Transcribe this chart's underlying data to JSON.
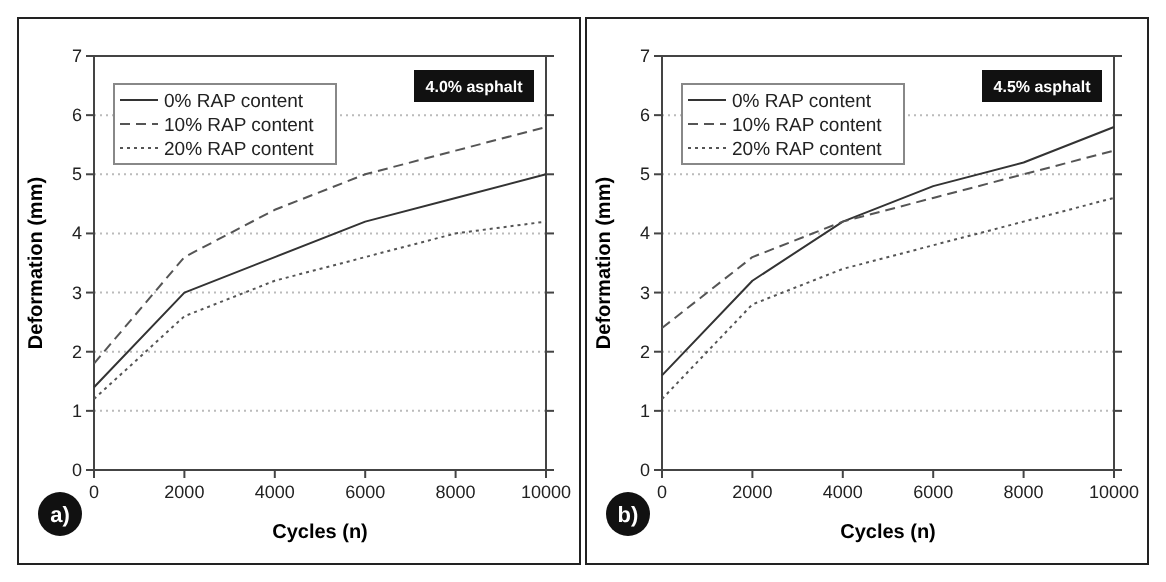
{
  "chart_data": [
    {
      "type": "line",
      "x": [
        0,
        2000,
        4000,
        6000,
        8000,
        10000
      ],
      "xlabel": "Cycles (n)",
      "ylabel": "Deformation (mm)",
      "xlim": [
        0,
        10000
      ],
      "xticks": [
        0,
        2000,
        4000,
        6000,
        8000,
        10000
      ],
      "ylim": [
        0,
        7
      ],
      "yticks": [
        0,
        1,
        2,
        3,
        4,
        5,
        6,
        7
      ],
      "grid": "y",
      "legend": "top left",
      "marker": "none",
      "annotations": [
        "4.0% asphalt",
        "a)"
      ],
      "series": [
        {
          "name": "0% RAP content",
          "color": "#333333",
          "line_style": "solid",
          "values": [
            1.4,
            3.0,
            3.6,
            4.2,
            4.6,
            5.0
          ]
        },
        {
          "name": "10% RAP content",
          "color": "#555555",
          "line_style": "dashed",
          "values": [
            1.8,
            3.6,
            4.4,
            5.0,
            5.4,
            5.8
          ]
        },
        {
          "name": "20% RAP content",
          "color": "#555555",
          "line_style": "dotted",
          "values": [
            1.2,
            2.6,
            3.2,
            3.6,
            4.0,
            4.2
          ]
        }
      ]
    },
    {
      "type": "line",
      "x": [
        0,
        2000,
        4000,
        6000,
        8000,
        10000
      ],
      "xlabel": "Cycles (n)",
      "ylabel": "Deformation (mm)",
      "xlim": [
        0,
        10000
      ],
      "xticks": [
        0,
        2000,
        4000,
        6000,
        8000,
        10000
      ],
      "ylim": [
        0,
        7
      ],
      "yticks": [
        0,
        1,
        2,
        3,
        4,
        5,
        6,
        7
      ],
      "grid": "y",
      "legend": "top left",
      "marker": "none",
      "annotations": [
        "4.5% asphalt",
        "b)"
      ],
      "series": [
        {
          "name": "0% RAP content",
          "color": "#333333",
          "line_style": "solid",
          "values": [
            1.6,
            3.2,
            4.2,
            4.8,
            5.2,
            5.8
          ]
        },
        {
          "name": "10% RAP content",
          "color": "#555555",
          "line_style": "dashed",
          "values": [
            2.4,
            3.6,
            4.2,
            4.6,
            5.0,
            5.4
          ]
        },
        {
          "name": "20% RAP content",
          "color": "#555555",
          "line_style": "dotted",
          "values": [
            1.2,
            2.8,
            3.4,
            3.8,
            4.2,
            4.6
          ]
        }
      ]
    }
  ]
}
